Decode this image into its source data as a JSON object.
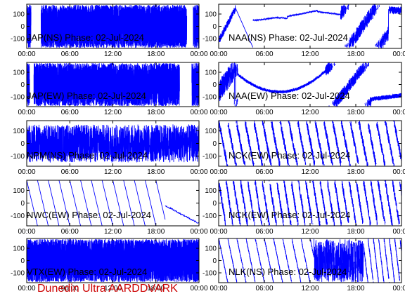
{
  "footer": "Dunedin Ultra AARDDVARK",
  "colors": {
    "trace": "#0000ff",
    "axis": "#000000",
    "footer": "#cc0000",
    "background": "#ffffff"
  },
  "chart_data": [
    {
      "type": "line",
      "title": "JAP(NS) Phase: 02-Jul-2024",
      "x_ticks": [
        "00:00",
        "06:00",
        "12:00",
        "18:00",
        "00:00"
      ],
      "y_ticks": [
        100,
        0,
        -100
      ],
      "ylim": [
        -180,
        180
      ],
      "xlim_hours": [
        0,
        24
      ],
      "pattern": "dense",
      "gaps_hours": [
        [
          0.6,
          2.0
        ],
        [
          22.3,
          23.2
        ]
      ]
    },
    {
      "type": "line",
      "title": "NAA(NS) Phase: 02-Jul-2024",
      "x_ticks": [
        "00:00",
        "06:00",
        "12:00",
        "18:00",
        "00:00"
      ],
      "y_ticks": [
        100,
        0,
        -100
      ],
      "ylim": [
        -180,
        180
      ],
      "xlim_hours": [
        0,
        24
      ],
      "pattern": "naa_ns"
    },
    {
      "type": "line",
      "title": "JAP(EW) Phase: 02-Jul-2024",
      "x_ticks": [
        "00:00",
        "06:00",
        "12:00",
        "18:00",
        "00:00"
      ],
      "y_ticks": [
        100,
        0,
        -100
      ],
      "ylim": [
        -180,
        180
      ],
      "xlim_hours": [
        0,
        24
      ],
      "pattern": "dense",
      "gaps_hours": [
        [
          0.4,
          1.0
        ],
        [
          21.3,
          23.0
        ]
      ]
    },
    {
      "type": "line",
      "title": "NAA(EW) Phase: 02-Jul-2024",
      "x_ticks": [
        "00:00",
        "06:00",
        "12:00",
        "18:00",
        "00:00"
      ],
      "y_ticks": [
        100,
        0,
        -100
      ],
      "ylim": [
        -180,
        180
      ],
      "xlim_hours": [
        0,
        24
      ],
      "pattern": "naa_ew"
    },
    {
      "type": "line",
      "title": "NPM(NS) Phase: 02-Jul-2024",
      "x_ticks": [
        "00:00",
        "06:00",
        "12:00",
        "18:00",
        "00:00"
      ],
      "y_ticks": [
        100,
        0,
        -100
      ],
      "ylim": [
        -180,
        180
      ],
      "xlim_hours": [
        0,
        24
      ],
      "pattern": "noisy"
    },
    {
      "type": "line",
      "title": "NCK(EW) Phase: 02-Jul-2024",
      "x_ticks": [
        "00:00",
        "06:00",
        "12:00",
        "18:00",
        "00:00"
      ],
      "y_ticks": [
        100,
        0,
        -100
      ],
      "ylim": [
        -180,
        180
      ],
      "xlim_hours": [
        0,
        24
      ],
      "pattern": "sawtooth_dense",
      "period_hours": 1.15
    },
    {
      "type": "line",
      "title": "NWC(EW) Phase: 02-Jul-2024",
      "x_ticks": [
        "00:00",
        "06:00",
        "12:00",
        "18:00",
        "00:00"
      ],
      "y_ticks": [
        100,
        0,
        -100
      ],
      "ylim": [
        -180,
        180
      ],
      "xlim_hours": [
        0,
        24
      ],
      "pattern": "sawtooth",
      "period_hours": 1.5,
      "end_hours": 19.3
    },
    {
      "type": "line",
      "title": "NCK(EW) Phase: 02-Jul-2024",
      "x_ticks": [
        "00:00",
        "06:00",
        "12:00",
        "18:00",
        "00:00"
      ],
      "y_ticks": [
        100,
        0,
        -100
      ],
      "ylim": [
        -180,
        180
      ],
      "xlim_hours": [
        0,
        24
      ],
      "pattern": "sawtooth_dense",
      "period_hours": 0.95
    },
    {
      "type": "line",
      "title": "VTX(EW) Phase: 02-Jul-2024",
      "x_ticks": [
        "00:00",
        "06:00",
        "12:00",
        "18:00",
        "00:00"
      ],
      "y_ticks": [
        100,
        0,
        -100
      ],
      "ylim": [
        -180,
        180
      ],
      "xlim_hours": [
        0,
        24
      ],
      "pattern": "dense",
      "gaps_hours": []
    },
    {
      "type": "line",
      "title": "NLK(NS) Phase: 02-Jul-2024",
      "x_ticks": [
        "00:00",
        "06:00",
        "12:00",
        "18:00",
        "00:00"
      ],
      "y_ticks": [
        100,
        0,
        -100
      ],
      "ylim": [
        -180,
        180
      ],
      "xlim_hours": [
        0,
        24
      ],
      "pattern": "nlk"
    }
  ]
}
